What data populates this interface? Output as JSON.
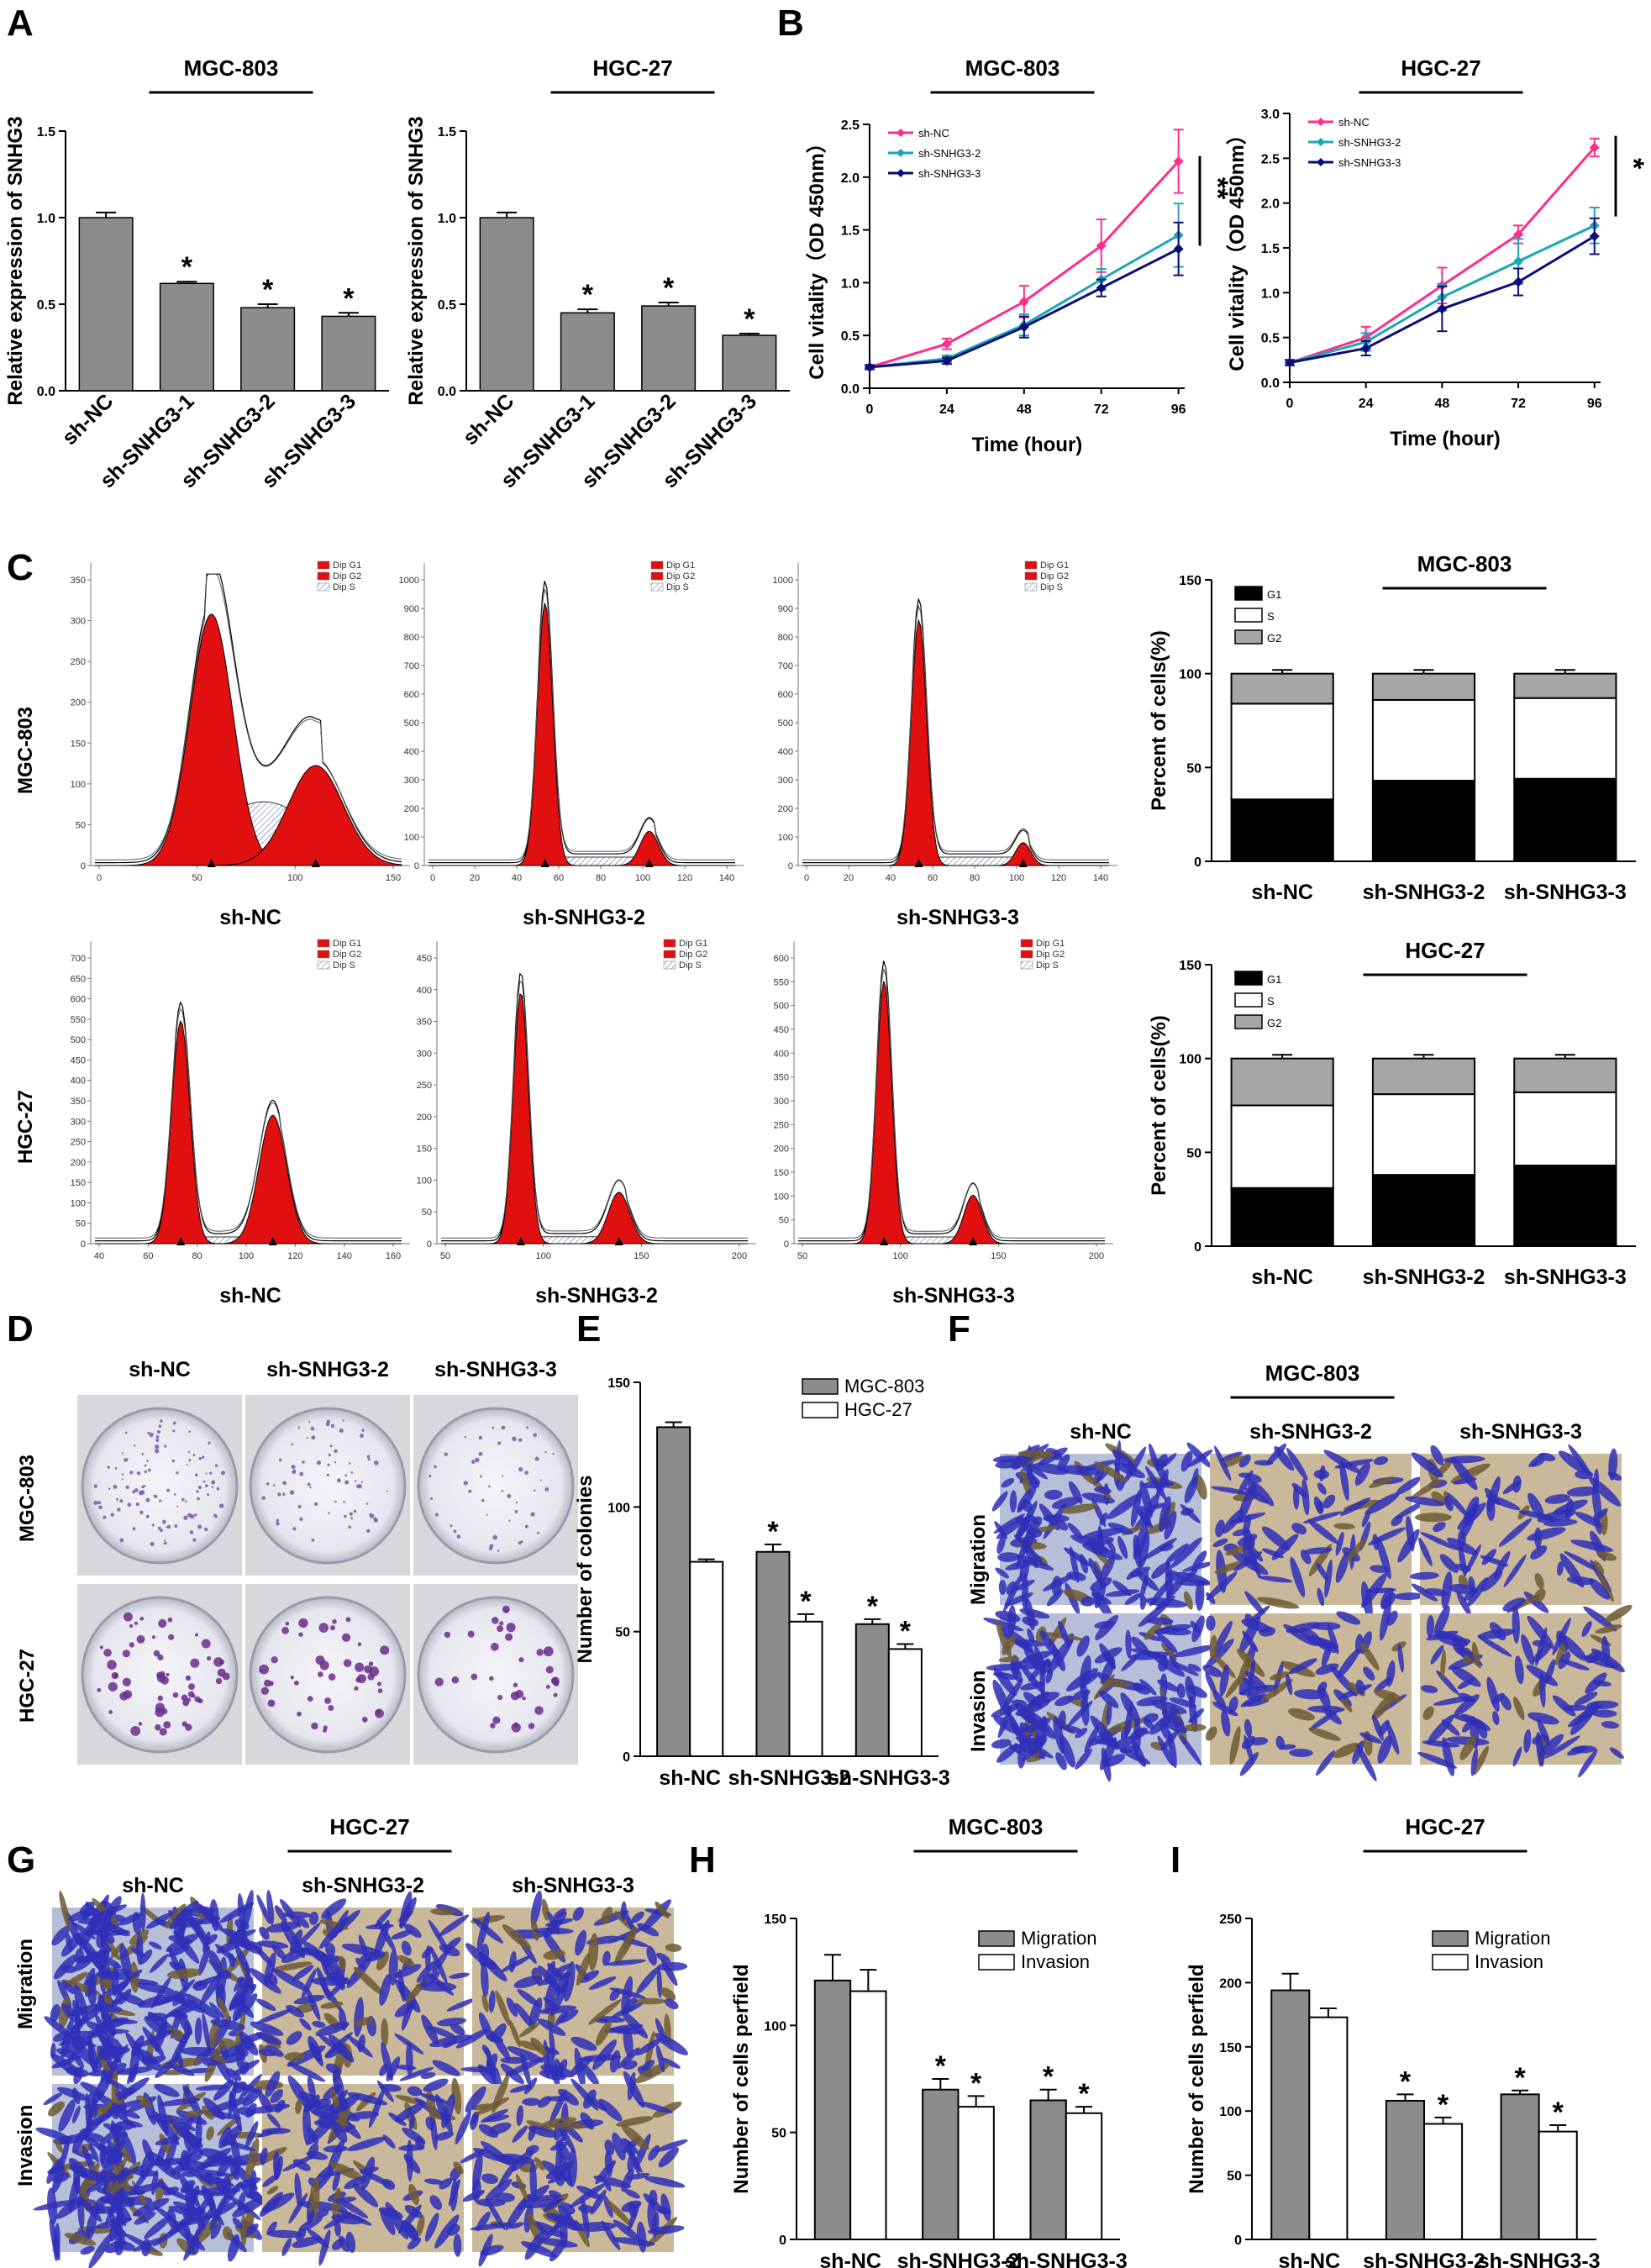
{
  "figure": {
    "panels": {
      "A": "A",
      "B": "B",
      "C": "C",
      "D": "D",
      "E": "E",
      "F": "F",
      "G": "G",
      "H": "H",
      "I": "I"
    },
    "cell_lines": {
      "mgc": "MGC-803",
      "hgc": "HGC-27"
    },
    "row_labels": {
      "migration": "Migration",
      "invasion": "Invasion"
    },
    "star": "*",
    "double_star": "**"
  },
  "chart_data": [
    {
      "id": "A-MGC803",
      "type": "bar",
      "title": "MGC-803",
      "ylabel": "Relative expression of SNHG3",
      "categories": [
        "sh-NC",
        "sh-SNHG3-1",
        "sh-SNHG3-2",
        "sh-SNHG3-3"
      ],
      "values": [
        1.0,
        0.62,
        0.48,
        0.43
      ],
      "errors": [
        0.03,
        0.01,
        0.02,
        0.02
      ],
      "significance": [
        "",
        "*",
        "*",
        "*"
      ],
      "ylim": [
        0,
        1.5
      ],
      "yticks": [
        "0.0",
        "0.5",
        "1.0",
        "1.5"
      ],
      "bar_color": "#8c8c8c"
    },
    {
      "id": "A-HGC27",
      "type": "bar",
      "title": "HGC-27",
      "ylabel": "Relative expression of SNHG3",
      "categories": [
        "sh-NC",
        "sh-SNHG3-1",
        "sh-SNHG3-2",
        "sh-SNHG3-3"
      ],
      "values": [
        1.0,
        0.45,
        0.49,
        0.32
      ],
      "errors": [
        0.03,
        0.02,
        0.02,
        0.01
      ],
      "significance": [
        "",
        "*",
        "*",
        "*"
      ],
      "ylim": [
        0,
        1.5
      ],
      "yticks": [
        "0.0",
        "0.5",
        "1.0",
        "1.5"
      ],
      "bar_color": "#8c8c8c"
    },
    {
      "id": "B-MGC803",
      "type": "line",
      "title": "MGC-803",
      "xlabel": "Time (hour)",
      "ylabel": "Cell vitality（OD 450nm）",
      "x": [
        0,
        24,
        48,
        72,
        96
      ],
      "xticks": [
        "0",
        "24",
        "48",
        "72",
        "96"
      ],
      "yticks": [
        "0.0",
        "0.5",
        "1.0",
        "1.5",
        "2.0",
        "2.5"
      ],
      "ylim": [
        0,
        2.5
      ],
      "series": [
        {
          "name": "sh-NC",
          "color": "#ff2d8a",
          "values": [
            0.2,
            0.42,
            0.82,
            1.35,
            2.15
          ],
          "errors": [
            0.02,
            0.05,
            0.15,
            0.25,
            0.3
          ]
        },
        {
          "name": "sh-SNHG3-2",
          "color": "#1aa6b7",
          "values": [
            0.2,
            0.28,
            0.6,
            1.03,
            1.45
          ],
          "errors": [
            0.02,
            0.03,
            0.1,
            0.1,
            0.3
          ]
        },
        {
          "name": "sh-SNHG3-3",
          "color": "#0c0c7a",
          "values": [
            0.2,
            0.26,
            0.58,
            0.95,
            1.32
          ],
          "errors": [
            0.02,
            0.03,
            0.1,
            0.08,
            0.25
          ]
        }
      ],
      "significance": "**"
    },
    {
      "id": "B-HGC27",
      "type": "line",
      "title": "HGC-27",
      "xlabel": "Time (hour)",
      "ylabel": "Cell vitality（OD 450nm）",
      "x": [
        0,
        24,
        48,
        72,
        96
      ],
      "xticks": [
        "0",
        "24",
        "48",
        "72",
        "96"
      ],
      "yticks": [
        "0.0",
        "0.5",
        "1.0",
        "1.5",
        "2.0",
        "2.5",
        "3.0"
      ],
      "ylim": [
        0,
        3.0
      ],
      "series": [
        {
          "name": "sh-NC",
          "color": "#ff2d8a",
          "values": [
            0.22,
            0.5,
            1.08,
            1.65,
            2.62
          ],
          "errors": [
            0.03,
            0.12,
            0.2,
            0.1,
            0.1
          ]
        },
        {
          "name": "sh-SNHG3-2",
          "color": "#1aa6b7",
          "values": [
            0.22,
            0.45,
            0.95,
            1.35,
            1.75
          ],
          "errors": [
            0.03,
            0.1,
            0.15,
            0.25,
            0.2
          ]
        },
        {
          "name": "sh-SNHG3-3",
          "color": "#0c0c7a",
          "values": [
            0.22,
            0.38,
            0.82,
            1.12,
            1.63
          ],
          "errors": [
            0.03,
            0.08,
            0.25,
            0.15,
            0.2
          ]
        }
      ],
      "significance": "*"
    },
    {
      "id": "C-histograms",
      "type": "area",
      "legend": [
        "Dip G1",
        "Dip G2",
        "Dip S"
      ],
      "rows": [
        {
          "line": "MGC-803",
          "panels": [
            {
              "label": "sh-NC",
              "xticks": [
                "0",
                "50",
                "100",
                "150"
              ],
              "yticks": [
                "0",
                "50",
                "100",
                "150",
                "200",
                "250",
                "300",
                "350"
              ]
            },
            {
              "label": "sh-SNHG3-2",
              "xticks": [
                "0",
                "20",
                "40",
                "60",
                "80",
                "100",
                "120",
                "140"
              ],
              "yticks": [
                "0",
                "100",
                "200",
                "300",
                "400",
                "500",
                "600",
                "700",
                "800",
                "900",
                "1000"
              ]
            },
            {
              "label": "sh-SNHG3-3",
              "xticks": [
                "0",
                "20",
                "40",
                "60",
                "80",
                "100",
                "120",
                "140"
              ],
              "yticks": [
                "0",
                "100",
                "200",
                "300",
                "400",
                "500",
                "600",
                "700",
                "800",
                "900",
                "1000"
              ]
            }
          ]
        },
        {
          "line": "HGC-27",
          "panels": [
            {
              "label": "sh-NC",
              "xticks": [
                "40",
                "60",
                "80",
                "100",
                "120",
                "140",
                "160"
              ],
              "yticks": [
                "0",
                "50",
                "100",
                "150",
                "200",
                "250",
                "300",
                "350",
                "400",
                "450",
                "500",
                "550",
                "600",
                "650",
                "700"
              ]
            },
            {
              "label": "sh-SNHG3-2",
              "xticks": [
                "50",
                "100",
                "150",
                "200"
              ],
              "yticks": [
                "0",
                "50",
                "100",
                "150",
                "200",
                "250",
                "300",
                "350",
                "400",
                "450"
              ]
            },
            {
              "label": "sh-SNHG3-3",
              "xticks": [
                "50",
                "100",
                "150",
                "200"
              ],
              "yticks": [
                "0",
                "50",
                "100",
                "150",
                "200",
                "250",
                "300",
                "350",
                "400",
                "450",
                "500",
                "550",
                "600"
              ]
            }
          ]
        }
      ]
    },
    {
      "id": "C-MGC803-stacked",
      "type": "bar",
      "title": "MGC-803",
      "ylabel": "Percent of cells(%)",
      "categories": [
        "sh-NC",
        "sh-SNHG3-2",
        "sh-SNHG3-3"
      ],
      "series": [
        {
          "name": "G1",
          "color": "#000000",
          "values": [
            33,
            43,
            44
          ]
        },
        {
          "name": "S",
          "color": "#ffffff",
          "values": [
            51,
            43,
            43
          ]
        },
        {
          "name": "G2",
          "color": "#a6a6a6",
          "values": [
            16,
            14,
            13
          ]
        }
      ],
      "ylim": [
        0,
        150
      ],
      "yticks": [
        "0",
        "50",
        "100",
        "150"
      ]
    },
    {
      "id": "C-HGC27-stacked",
      "type": "bar",
      "title": "HGC-27",
      "ylabel": "Percent of cells(%)",
      "categories": [
        "sh-NC",
        "sh-SNHG3-2",
        "sh-SNHG3-3"
      ],
      "series": [
        {
          "name": "G1",
          "color": "#000000",
          "values": [
            31,
            38,
            43
          ]
        },
        {
          "name": "S",
          "color": "#ffffff",
          "values": [
            44,
            43,
            39
          ]
        },
        {
          "name": "G2",
          "color": "#a6a6a6",
          "values": [
            25,
            19,
            18
          ]
        }
      ],
      "ylim": [
        0,
        150
      ],
      "yticks": [
        "0",
        "50",
        "100",
        "150"
      ]
    },
    {
      "id": "D-colony-images",
      "type": "table",
      "columns": [
        "sh-NC",
        "sh-SNHG3-2",
        "sh-SNHG3-3"
      ],
      "rows": [
        "MGC-803",
        "HGC-27"
      ]
    },
    {
      "id": "E-colonies",
      "type": "bar",
      "ylabel": "Number of colonies",
      "categories": [
        "sh-NC",
        "sh-SNHG3-2",
        "sh-SNHG3-3"
      ],
      "series": [
        {
          "name": "MGC-803",
          "color": "#8c8c8c",
          "values": [
            132,
            82,
            53
          ],
          "errors": [
            2,
            3,
            2
          ]
        },
        {
          "name": "HGC-27",
          "color": "#ffffff",
          "values": [
            78,
            54,
            43
          ],
          "errors": [
            1,
            3,
            2
          ]
        }
      ],
      "significance": [
        [
          "",
          ""
        ],
        [
          "*",
          "*"
        ],
        [
          "*",
          "*"
        ]
      ],
      "ylim": [
        0,
        150
      ],
      "yticks": [
        "0",
        "50",
        "100",
        "150"
      ]
    },
    {
      "id": "F-transwell-images",
      "type": "table",
      "title": "MGC-803",
      "columns": [
        "sh-NC",
        "sh-SNHG3-2",
        "sh-SNHG3-3"
      ],
      "rows": [
        "Migration",
        "Invasion"
      ]
    },
    {
      "id": "G-transwell-images",
      "type": "table",
      "title": "HGC-27",
      "columns": [
        "sh-NC",
        "sh-SNHG3-2",
        "sh-SNHG3-3"
      ],
      "rows": [
        "Migration",
        "Invasion"
      ]
    },
    {
      "id": "H-MGC803",
      "type": "bar",
      "title": "MGC-803",
      "ylabel": "Number of cells perfield",
      "categories": [
        "sh-NC",
        "sh-SNHG3-2",
        "sh-SNHG3-3"
      ],
      "series": [
        {
          "name": "Migration",
          "color": "#8c8c8c",
          "values": [
            121,
            70,
            65
          ],
          "errors": [
            12,
            5,
            5
          ]
        },
        {
          "name": "Invasion",
          "color": "#ffffff",
          "values": [
            116,
            62,
            59
          ],
          "errors": [
            10,
            5,
            3
          ]
        }
      ],
      "significance": [
        [
          "",
          ""
        ],
        [
          "*",
          "*"
        ],
        [
          "*",
          "*"
        ]
      ],
      "ylim": [
        0,
        150
      ],
      "yticks": [
        "0",
        "50",
        "100",
        "150"
      ]
    },
    {
      "id": "I-HGC27",
      "type": "bar",
      "title": "HGC-27",
      "ylabel": "Number of cells perfield",
      "categories": [
        "sh-NC",
        "sh-SNHG3-2",
        "sh-SNHG3-3"
      ],
      "series": [
        {
          "name": "Migration",
          "color": "#8c8c8c",
          "values": [
            194,
            108,
            113
          ],
          "errors": [
            13,
            5,
            3
          ]
        },
        {
          "name": "Invasion",
          "color": "#ffffff",
          "values": [
            173,
            90,
            84
          ],
          "errors": [
            7,
            5,
            5
          ]
        }
      ],
      "significance": [
        [
          "",
          ""
        ],
        [
          "*",
          "*"
        ],
        [
          "*",
          "*"
        ]
      ],
      "ylim": [
        0,
        250
      ],
      "yticks": [
        "0",
        "50",
        "100",
        "150",
        "200",
        "250"
      ]
    }
  ]
}
